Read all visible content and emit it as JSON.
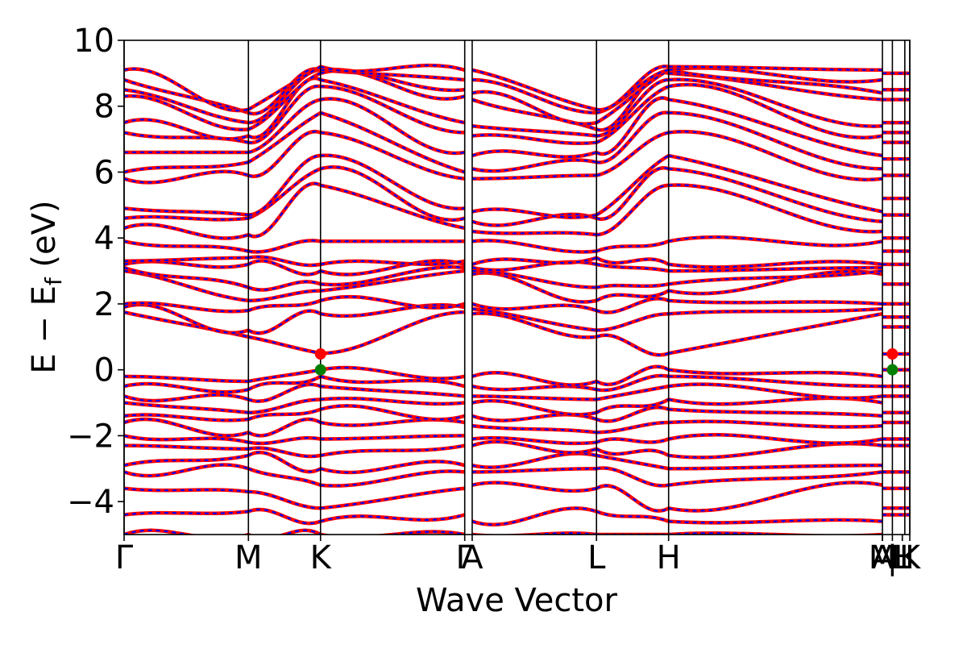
{
  "chart_data": {
    "type": "line",
    "title": "",
    "xlabel": "Wave Vector",
    "ylabel_parts": {
      "main": "E − E",
      "sub": "f",
      "unit": " (eV)"
    },
    "ylim": [
      -5,
      10
    ],
    "yticks": [
      -4,
      -2,
      0,
      2,
      4,
      6,
      8,
      10
    ],
    "ytick_labels": [
      "−4",
      "−2",
      "0",
      "2",
      "4",
      "6",
      "8",
      "10"
    ],
    "kpath_positions": [
      0.0,
      1.0,
      1.58,
      2.74,
      2.8,
      3.8,
      4.38,
      6.1,
      6.18,
      6.28,
      6.32
    ],
    "xlim": [
      0.0,
      6.32
    ],
    "kpoint_labels": [
      {
        "k": 0.0,
        "label": "Γ"
      },
      {
        "k": 1.0,
        "label": "M"
      },
      {
        "k": 1.58,
        "label": "K"
      },
      {
        "k": 2.74,
        "label": "Γ"
      },
      {
        "k": 2.8,
        "label": "A"
      },
      {
        "k": 3.8,
        "label": "L"
      },
      {
        "k": 4.38,
        "label": "H"
      },
      {
        "k": 6.1,
        "label": "A"
      },
      {
        "k": 6.1,
        "label": "M"
      },
      {
        "k": 6.18,
        "label": "|"
      },
      {
        "k": 6.26,
        "label": "H"
      },
      {
        "k": 6.26,
        "label": "L"
      },
      {
        "k": 6.32,
        "label": "K"
      }
    ],
    "series": [
      {
        "color": "#ff0000",
        "style": "solid",
        "width": 4.5
      },
      {
        "color": "#0000ff",
        "style": "dashed",
        "width": 2.2
      }
    ],
    "band_segments": [
      {
        "from": 0.0,
        "to": 1.0
      },
      {
        "from": 1.0,
        "to": 1.58
      },
      {
        "from": 1.58,
        "to": 2.74
      },
      {
        "from": 2.8,
        "to": 3.8
      },
      {
        "from": 3.8,
        "to": 4.38
      },
      {
        "from": 4.38,
        "to": 6.1
      }
    ],
    "band_energies_at_kpoints": {
      "comment_free_note": "",
      "Gamma": [
        -5.0,
        -4.4,
        -3.6,
        -3.1,
        -2.9,
        -2.3,
        -2.0,
        -1.6,
        -1.4,
        -1.0,
        -0.8,
        -0.5,
        -0.2,
        1.75,
        1.9,
        2.0,
        3.0,
        3.1,
        3.2,
        3.3,
        3.9,
        4.3,
        4.6,
        4.9,
        5.8,
        6.0,
        6.6,
        7.2,
        7.5,
        8.3,
        8.5,
        8.8,
        9.1
      ],
      "M": [
        -5.0,
        -4.3,
        -3.7,
        -3.0,
        -2.6,
        -2.4,
        -2.2,
        -1.9,
        -1.5,
        -1.3,
        -0.9,
        -0.6,
        -0.35,
        1.0,
        1.2,
        1.8,
        2.1,
        2.5,
        3.2,
        3.4,
        3.6,
        4.1,
        4.6,
        4.7,
        5.9,
        6.3,
        6.6,
        6.9,
        7.1,
        7.3,
        7.5,
        7.8,
        7.9
      ],
      "K": [
        -5.0,
        -4.6,
        -4.2,
        -3.5,
        -3.0,
        -2.6,
        -2.1,
        -1.6,
        -1.2,
        -0.9,
        -0.5,
        -0.2,
        0.0,
        0.5,
        1.7,
        2.1,
        2.4,
        2.6,
        3.0,
        3.2,
        3.9,
        5.6,
        6.1,
        6.5,
        7.2,
        7.8,
        8.2,
        8.6,
        8.8,
        9.0,
        9.1,
        9.1,
        9.2
      ],
      "A": [
        -5.0,
        -4.6,
        -3.5,
        -3.1,
        -2.9,
        -2.3,
        -2.1,
        -1.7,
        -1.4,
        -1.0,
        -0.8,
        -0.5,
        -0.2,
        1.7,
        1.85,
        2.0,
        2.9,
        3.0,
        3.1,
        3.2,
        3.9,
        4.2,
        4.5,
        4.8,
        5.8,
        6.1,
        6.5,
        7.1,
        7.4,
        8.2,
        8.4,
        8.8,
        9.1
      ],
      "L": [
        -5.0,
        -4.3,
        -3.6,
        -3.0,
        -2.6,
        -2.4,
        -2.2,
        -1.9,
        -1.5,
        -1.3,
        -0.9,
        -0.6,
        -0.35,
        1.0,
        1.2,
        1.8,
        2.1,
        2.5,
        3.2,
        3.4,
        3.6,
        4.1,
        4.6,
        4.7,
        5.9,
        6.3,
        6.6,
        6.9,
        7.1,
        7.3,
        7.5,
        7.8,
        7.9
      ],
      "H": [
        -5.0,
        -4.6,
        -4.2,
        -3.5,
        -3.0,
        -2.6,
        -2.1,
        -1.6,
        -1.2,
        -0.9,
        -0.5,
        -0.2,
        0.0,
        0.5,
        1.7,
        2.1,
        2.4,
        2.6,
        3.0,
        3.2,
        3.9,
        5.6,
        6.1,
        6.5,
        7.2,
        7.8,
        8.2,
        8.6,
        8.8,
        9.0,
        9.1,
        9.1,
        9.2
      ]
    },
    "flat_bands_right_panel": [
      -4.4,
      -4.2,
      -3.6,
      -3.1,
      -2.3,
      -2.1,
      -1.6,
      -1.3,
      -0.8,
      -0.5,
      0.0,
      0.48,
      1.3,
      1.6,
      2.0,
      2.6,
      3.2,
      3.6,
      4.0,
      4.7,
      5.2,
      5.9,
      6.4,
      6.9,
      7.2,
      7.5,
      8.2,
      8.5,
      9.0
    ],
    "markers": [
      {
        "name": "cbm-marker",
        "k": 1.58,
        "energy": 0.48,
        "color": "#ff0000"
      },
      {
        "name": "vbm-marker",
        "k": 1.58,
        "energy": 0.0,
        "color": "#008000"
      },
      {
        "name": "cbm-marker-right",
        "k": 6.18,
        "energy": 0.48,
        "color": "#ff0000"
      },
      {
        "name": "vbm-marker-right",
        "k": 6.18,
        "energy": 0.0,
        "color": "#008000"
      }
    ],
    "grid": false,
    "legend": "none"
  }
}
